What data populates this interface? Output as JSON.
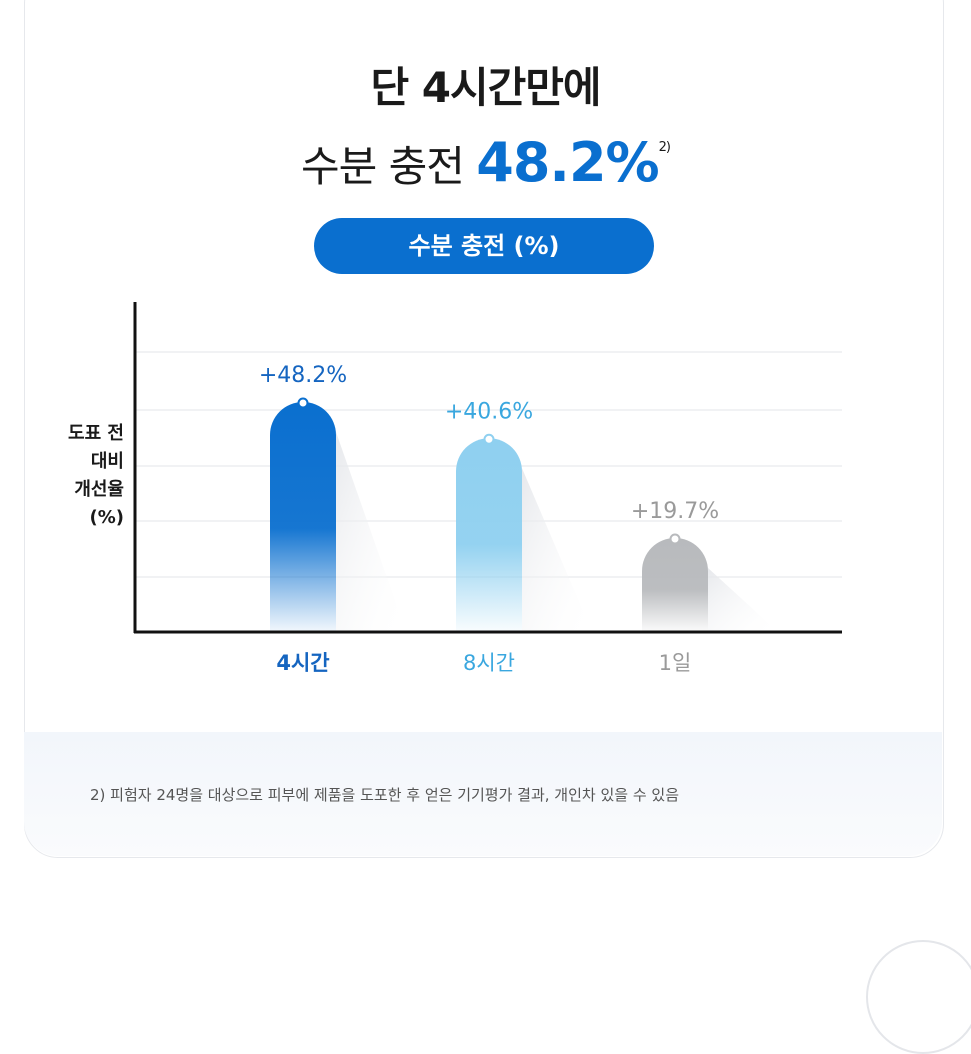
{
  "headline": {
    "line1": "단 4시간만에",
    "line2_prefix": "수분 충전 ",
    "line2_value": "48.2%",
    "line2_sup": "2)"
  },
  "pill_label": "수분 충전 (%)",
  "y_axis_label": [
    "도표 전",
    "대비",
    "개선율",
    "(%)"
  ],
  "footnote": "2) 피험자 24명을 대상으로 피부에 제품을 도포한 후 얻은 기기평가 결과, 개인차 있을 수 있음",
  "colors": {
    "accent": "#0a6fcf",
    "bar_4h": "#0a6fcf",
    "bar_8h": "#8fd0f0",
    "bar_1d": "#b8babd",
    "label_4h": "#1565c0",
    "label_8h": "#3aa7df",
    "label_1d": "#9a9a9a"
  },
  "chart_data": {
    "type": "bar",
    "categories": [
      "4시간",
      "8시간",
      "1일"
    ],
    "values": [
      48.2,
      40.6,
      19.7
    ],
    "data_labels": [
      "+48.2%",
      "+40.6%",
      "+19.7%"
    ],
    "ylabel": "도표 전 대비 개선율 (%)",
    "ylim": [
      0,
      55
    ],
    "grid": true,
    "legend": "none"
  }
}
